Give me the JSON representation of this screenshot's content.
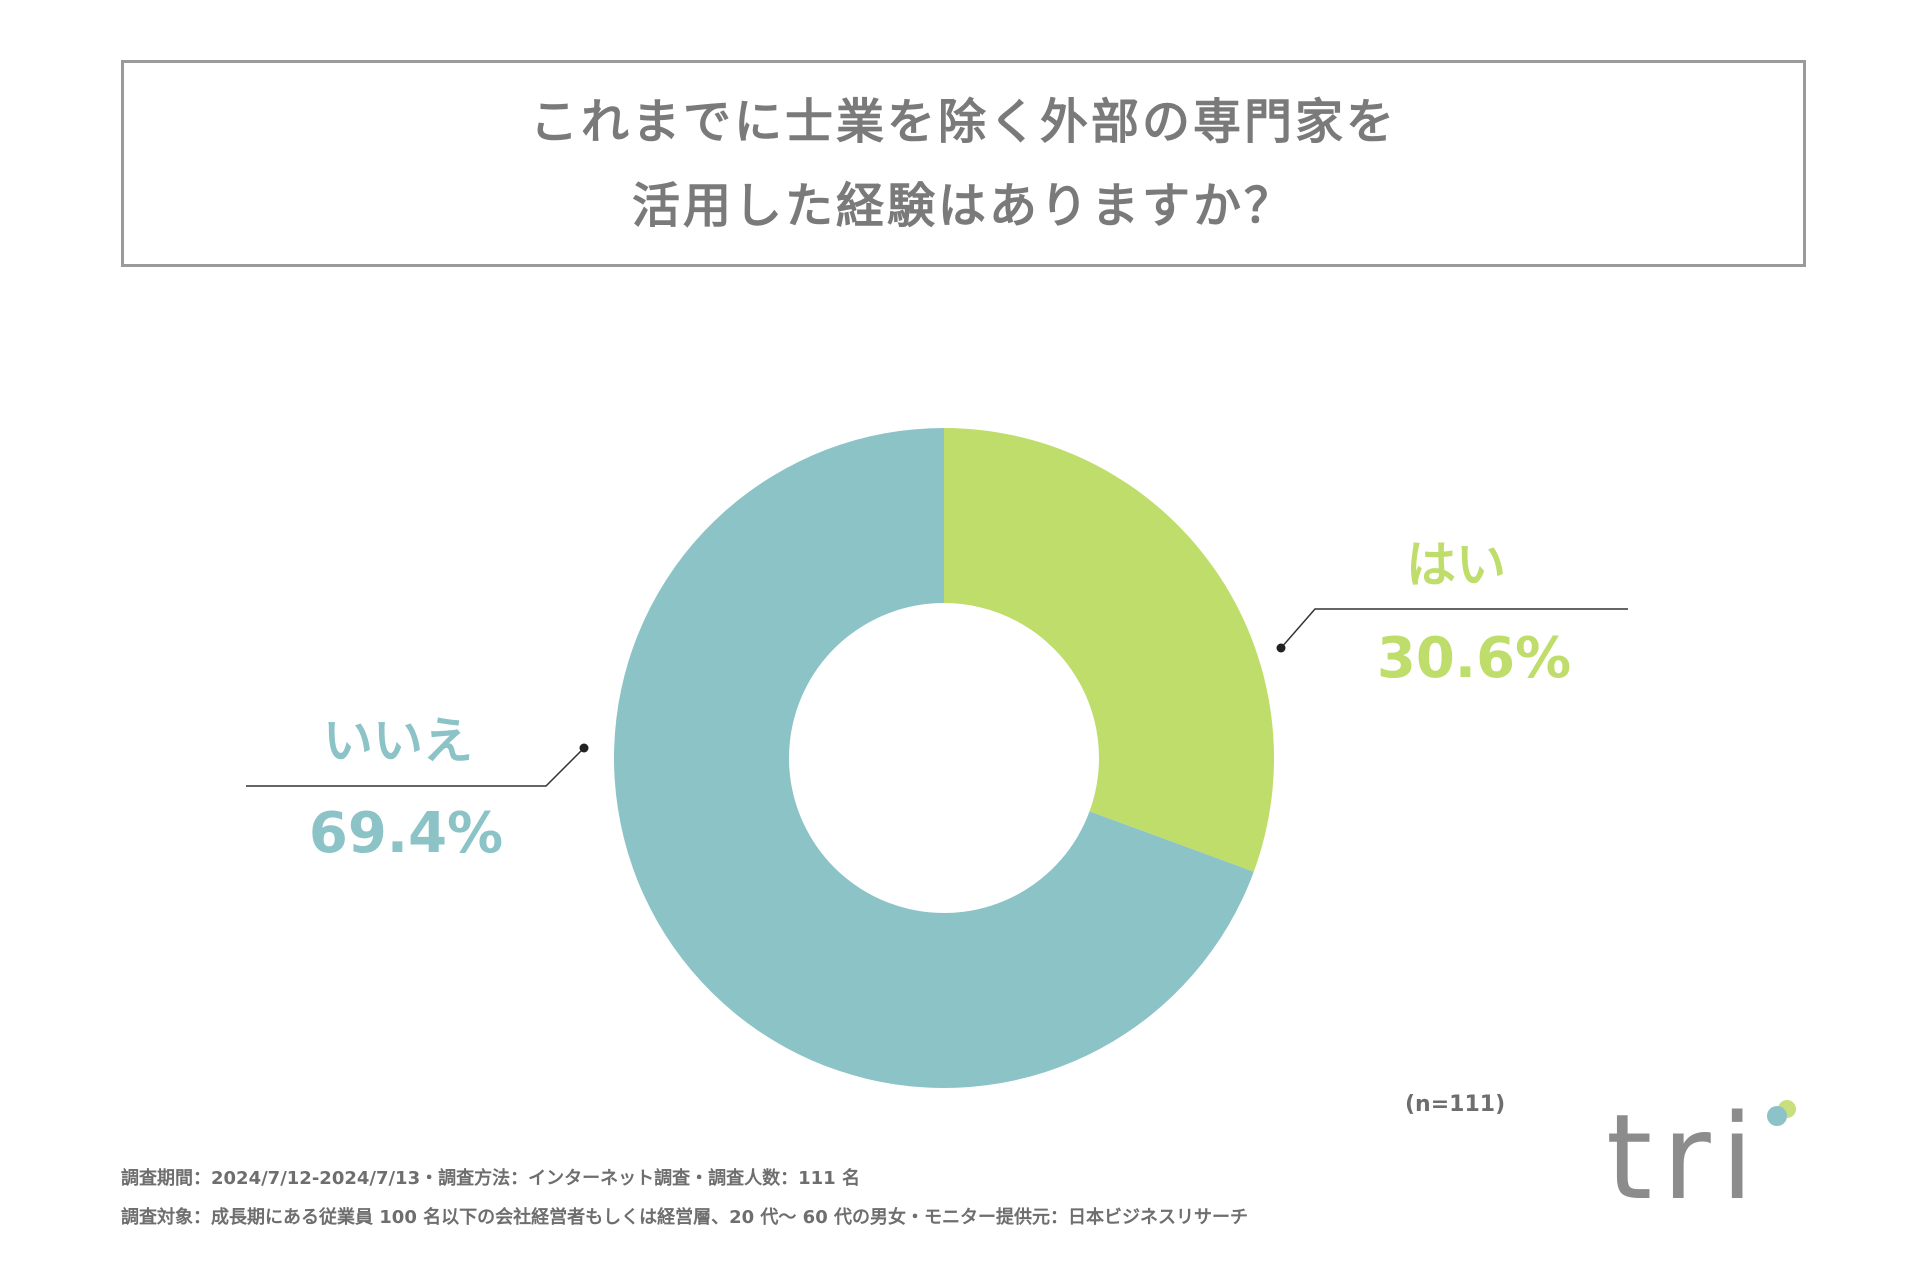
{
  "title": {
    "line1": "これまでに士業を除く外部の専門家を",
    "line2": "活用した経験はありますか？"
  },
  "chart_data": {
    "type": "pie",
    "variant": "donut",
    "slices": [
      {
        "label": "はい",
        "value": 30.6,
        "value_label": "30.6%",
        "color": "#bfdd6a"
      },
      {
        "label": "いいえ",
        "value": 69.4,
        "value_label": "69.4%",
        "color": "#8bc3c7"
      }
    ]
  },
  "sample_size": "(n=111)",
  "footer": {
    "line1": "調査期間：2024/7/12-2024/7/13・調査方法：インターネット調査・調査人数：111 名",
    "line2": "調査対象：成長期にある従業員 100 名以下の会社経営者もしくは経営層、20 代〜 60 代の男女・モニター提供元：日本ビジネスリサーチ"
  },
  "logo": {
    "text": "tri",
    "dot_colors": [
      "#8cc2c8",
      "#c7e07d"
    ]
  }
}
